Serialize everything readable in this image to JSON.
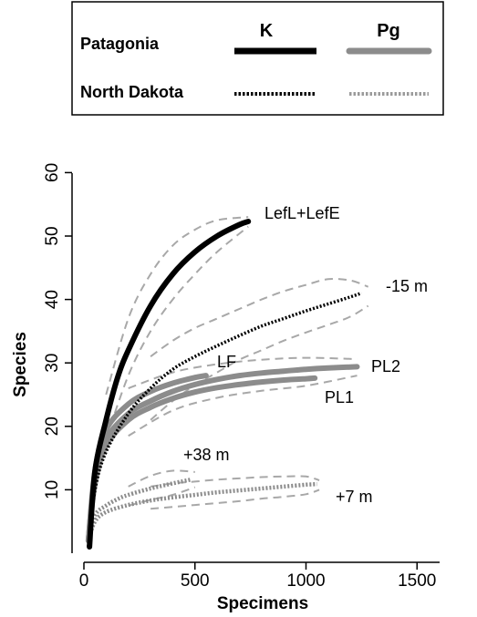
{
  "chart_data": {
    "type": "line",
    "xlabel": "Specimens",
    "ylabel": "Species",
    "xlim": [
      0,
      1600
    ],
    "ylim": [
      0,
      62
    ],
    "xticks": [
      0,
      500,
      1000,
      1500
    ],
    "yticks": [
      10,
      20,
      30,
      40,
      50,
      60
    ],
    "grid": false,
    "legend": {
      "placement": "top",
      "column_headers": [
        "K",
        "Pg"
      ],
      "row_labels": [
        "Patagonia",
        "North Dakota"
      ],
      "styles": [
        "solid",
        "dotted"
      ],
      "colors": {
        "K": "#000000",
        "Pg": "#8c8c8c"
      }
    },
    "series": [
      {
        "name": "LefL+LefE",
        "region": "Patagonia",
        "period": "K",
        "style": "solid",
        "color": "#000000",
        "x": [
          25,
          50,
          100,
          150,
          200,
          300,
          400,
          500,
          600,
          700,
          740
        ],
        "y": [
          1,
          13,
          21,
          27.5,
          32,
          39,
          44,
          47.5,
          50,
          51.8,
          52.3
        ]
      },
      {
        "name": "-15 m",
        "region": "North Dakota",
        "period": "K",
        "style": "dotted",
        "color": "#000000",
        "x": [
          20,
          50,
          100,
          200,
          300,
          400,
          500,
          600,
          700,
          800,
          900,
          1000,
          1100,
          1200,
          1250
        ],
        "y": [
          1,
          10,
          16,
          22,
          26,
          29,
          31,
          32.7,
          34.3,
          35.8,
          37,
          38.2,
          39.3,
          40.4,
          41
        ]
      },
      {
        "name": "PL2",
        "region": "Patagonia",
        "period": "Pg",
        "style": "solid",
        "color": "#8c8c8c",
        "x": [
          20,
          50,
          100,
          200,
          300,
          400,
          500,
          600,
          700,
          800,
          900,
          1000,
          1100,
          1230
        ],
        "y": [
          2,
          12,
          18,
          22,
          24,
          25.5,
          26.6,
          27.4,
          28,
          28.4,
          28.7,
          29,
          29.2,
          29.4
        ]
      },
      {
        "name": "PL1",
        "region": "Patagonia",
        "period": "Pg",
        "style": "solid",
        "color": "#8c8c8c",
        "x": [
          20,
          50,
          100,
          200,
          300,
          400,
          500,
          600,
          700,
          800,
          900,
          1000,
          1040
        ],
        "y": [
          2,
          11,
          17,
          21,
          23,
          24.4,
          25.4,
          26.1,
          26.6,
          27,
          27.3,
          27.5,
          27.6
        ]
      },
      {
        "name": "LF",
        "region": "Patagonia",
        "period": "Pg",
        "style": "solid",
        "color": "#8c8c8c",
        "x": [
          20,
          50,
          100,
          200,
          300,
          400,
          500,
          550
        ],
        "y": [
          2,
          13,
          19.5,
          23.5,
          25.5,
          26.8,
          27.7,
          28
        ]
      },
      {
        "name": "+38 m",
        "region": "North Dakota",
        "period": "Pg",
        "style": "dotted",
        "color": "#8c8c8c",
        "x": [
          20,
          50,
          100,
          150,
          200,
          300,
          400,
          480
        ],
        "y": [
          2,
          6,
          7.5,
          8.5,
          9.2,
          10.2,
          11,
          11.6
        ]
      },
      {
        "name": "+7 m",
        "region": "North Dakota",
        "period": "Pg",
        "style": "dotted",
        "color": "#8c8c8c",
        "x": [
          20,
          50,
          100,
          200,
          300,
          400,
          500,
          600,
          700,
          800,
          900,
          1000,
          1050
        ],
        "y": [
          2,
          5,
          6.5,
          7.6,
          8.3,
          8.8,
          9.2,
          9.6,
          9.9,
          10.2,
          10.5,
          10.8,
          10.9
        ]
      }
    ],
    "confidence_bands": [
      {
        "series": "LefL+LefE",
        "x": [
          100,
          200,
          300,
          400,
          500,
          600,
          740
        ],
        "upper": [
          25,
          37,
          44,
          48.5,
          51,
          52.5,
          53
        ],
        "lower": [
          18,
          28,
          35,
          40,
          44,
          47.5,
          51.5
        ]
      },
      {
        "series": "-15 m",
        "x": [
          300,
          400,
          500,
          600,
          700,
          800,
          900,
          1000,
          1100,
          1200,
          1280
        ],
        "upper": [
          31,
          33.5,
          35.5,
          37,
          38.5,
          40,
          41.3,
          42.3,
          43.2,
          43,
          42
        ],
        "lower": [
          21,
          24,
          26.5,
          28.5,
          30.5,
          32,
          33.5,
          34.8,
          36,
          37.3,
          39
        ]
      },
      {
        "series": "PL2",
        "x": [
          200,
          400,
          600,
          800,
          1000,
          1230
        ],
        "upper": [
          26,
          28.5,
          29.8,
          30.5,
          30.8,
          30.6
        ],
        "lower": [
          18.5,
          22.5,
          24.5,
          25.6,
          26.4,
          28
        ]
      },
      {
        "series": "+38 m",
        "x": [
          200,
          300,
          400,
          500
        ],
        "upper": [
          10.5,
          12.2,
          13,
          12.8
        ],
        "lower": [
          7.5,
          8.4,
          9.2,
          10.4
        ]
      },
      {
        "series": "+7 m",
        "x": [
          300,
          400,
          500,
          600,
          700,
          800,
          900,
          1000,
          1060
        ],
        "upper": [
          10.5,
          11,
          11.3,
          11.6,
          11.8,
          12,
          12.1,
          12.1,
          11.5
        ],
        "lower": [
          7,
          7.3,
          7.6,
          7.9,
          8.2,
          8.6,
          8.9,
          9.3,
          10
        ]
      }
    ]
  }
}
